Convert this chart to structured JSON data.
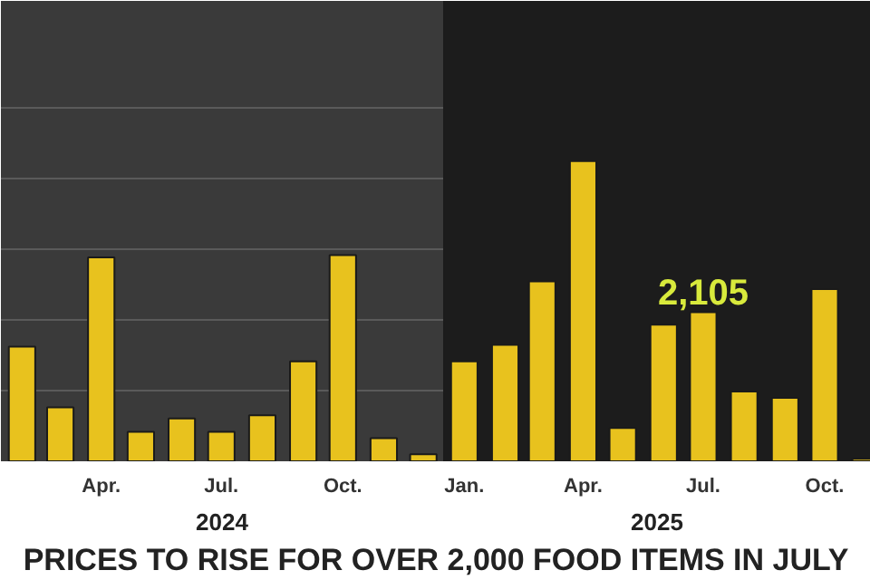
{
  "chart_data": {
    "type": "bar",
    "title": "PRICES TO RISE FOR OVER 2,000 FOOD ITEMS IN JULY",
    "x": [
      "2024-02",
      "2024-03",
      "2024-04",
      "2024-05",
      "2024-06",
      "2024-07",
      "2024-08",
      "2024-09",
      "2024-10",
      "2024-11",
      "2024-12",
      "2025-01",
      "2025-02",
      "2025-03",
      "2025-04",
      "2025-05",
      "2025-06",
      "2025-07",
      "2025-08",
      "2025-09",
      "2025-10",
      "2025-11"
    ],
    "values": [
      1620,
      760,
      2880,
      415,
      605,
      415,
      650,
      1410,
      2910,
      325,
      100,
      1410,
      1645,
      2540,
      4240,
      470,
      1930,
      2105,
      985,
      895,
      2430,
      35
    ],
    "value_labels": [
      null,
      null,
      null,
      null,
      null,
      null,
      null,
      null,
      null,
      null,
      null,
      null,
      null,
      null,
      null,
      null,
      null,
      "2,105",
      null,
      null,
      null,
      null
    ],
    "color": "#e8c21e",
    "xlim": [
      "2024-01-16",
      "2025-11-05"
    ],
    "xticks": [
      {
        "value": "2024-04",
        "label": "Apr."
      },
      {
        "value": "2024-07",
        "label": "Jul."
      },
      {
        "value": "2024-10",
        "label": "Oct."
      },
      {
        "value": "2025-01",
        "label": "Jan."
      },
      {
        "value": "2025-04",
        "label": "Apr."
      },
      {
        "value": "2025-07",
        "label": "Jul."
      },
      {
        "value": "2025-10",
        "label": "Oct."
      }
    ],
    "ylim": [
      0,
      6500
    ],
    "yticks": [
      {
        "value": 1000,
        "label": null
      },
      {
        "value": 2000,
        "label": null
      },
      {
        "value": 3000,
        "label": null
      },
      {
        "value": 4000,
        "label": null
      },
      {
        "value": 5000,
        "label": null
      }
    ],
    "grid": "y",
    "tick_labels": "x",
    "bands": [
      {
        "axis": "x",
        "from": "2024-12-16",
        "to": "2025-11-05",
        "color": "#1c1c1c"
      }
    ],
    "annotations": [
      "2024",
      "2025"
    ]
  }
}
